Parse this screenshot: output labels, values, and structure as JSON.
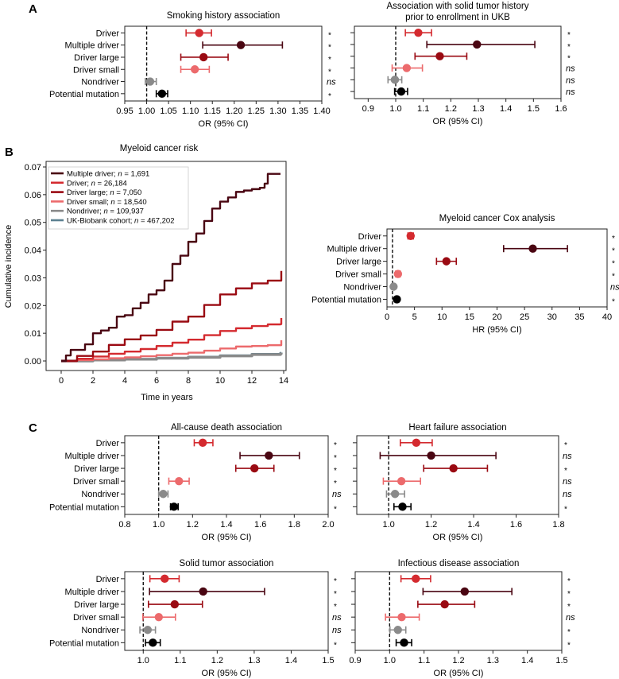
{
  "panel_labels": [
    "A",
    "B",
    "C"
  ],
  "colors": {
    "Driver": "#d42a2f",
    "Multiple driver": "#4a0612",
    "Driver large": "#9a0a12",
    "Driver small": "#ec6a6c",
    "Nondriver": "#8a8a8a",
    "Potential mutation": "#000000",
    "UK-Biobank cohort": "#5c8090"
  },
  "chart_data": [
    {
      "id": "smoking",
      "panel": "A",
      "type": "scatter",
      "subtype": "forest",
      "title": "Smoking history association",
      "xlabel": "OR (95% CI)",
      "xlim": [
        0.95,
        1.4
      ],
      "xticks": [
        0.95,
        1.0,
        1.05,
        1.1,
        1.15,
        1.2,
        1.25,
        1.3,
        1.35,
        1.4
      ],
      "xtick_labels": [
        "0.95",
        "1.00",
        "1.05",
        "1.10",
        "1.15",
        "1.20",
        "1.25",
        "1.30",
        "1.35",
        "1.40"
      ],
      "reference_line": 1.0,
      "categories": [
        "Driver",
        "Multiple driver",
        "Driver large",
        "Driver small",
        "Nondriver",
        "Potential mutation"
      ],
      "estimate": [
        1.12,
        1.215,
        1.13,
        1.11,
        1.008,
        1.035
      ],
      "ci_low": [
        1.09,
        1.128,
        1.078,
        1.078,
        0.997,
        1.022
      ],
      "ci_high": [
        1.148,
        1.31,
        1.186,
        1.143,
        1.022,
        1.048
      ],
      "significance": [
        "*",
        "*",
        "*",
        "*",
        "ns",
        "*"
      ]
    },
    {
      "id": "solid-tumor-history",
      "panel": "A",
      "type": "scatter",
      "subtype": "forest",
      "title": "Association with solid tumor history",
      "title_line2": "prior to enrollment in UKB",
      "xlabel": "OR (95% CI)",
      "xlim": [
        0.85,
        1.6
      ],
      "xticks": [
        0.9,
        1.0,
        1.1,
        1.2,
        1.3,
        1.4,
        1.5,
        1.6
      ],
      "xtick_labels": [
        "0.9",
        "1.0",
        "1.1",
        "1.2",
        "1.3",
        "1.4",
        "1.5",
        "1.6"
      ],
      "reference_line": 1.0,
      "categories": [
        "Driver",
        "Multiple driver",
        "Driver large",
        "Driver small",
        "Nondriver",
        "Potential mutation"
      ],
      "estimate": [
        1.082,
        1.295,
        1.16,
        1.04,
        0.997,
        1.02
      ],
      "ci_low": [
        1.035,
        1.113,
        1.07,
        0.987,
        0.972,
        0.996
      ],
      "ci_high": [
        1.13,
        1.505,
        1.258,
        1.097,
        1.022,
        1.043
      ],
      "significance": [
        "*",
        "*",
        "*",
        "ns",
        "ns",
        "ns"
      ]
    },
    {
      "id": "myeloid-risk",
      "panel": "B",
      "type": "line",
      "title": "Myeloid cancer risk",
      "xlabel": "Time in years",
      "ylabel": "Cumulative incidence",
      "xlim": [
        -1,
        14.5
      ],
      "ylim": [
        -0.003,
        0.0705
      ],
      "xticks": [
        0,
        2,
        4,
        6,
        8,
        10,
        12,
        14
      ],
      "xtick_labels": [
        "0",
        "2",
        "4",
        "6",
        "8",
        "10",
        "12",
        "14"
      ],
      "yticks": [
        0.0,
        0.01,
        0.02,
        0.03,
        0.04,
        0.05,
        0.06,
        0.07
      ],
      "ytick_labels": [
        "0.00",
        "0.01",
        "0.02",
        "0.03",
        "0.04",
        "0.05",
        "0.06",
        "0.07"
      ],
      "legend_position": "top-left",
      "legend": [
        {
          "name": "Multiple driver",
          "n": "1,691"
        },
        {
          "name": "Driver",
          "n": "26,184"
        },
        {
          "name": "Driver large",
          "n": "7,050"
        },
        {
          "name": "Driver small",
          "n": "18,540"
        },
        {
          "name": "Nondriver",
          "n": "109,937"
        },
        {
          "name": "UK-Biobank cohort",
          "n": "467,202"
        }
      ],
      "series": [
        {
          "name": "UK-Biobank cohort",
          "x": [
            0,
            2,
            4,
            6,
            8,
            10,
            12,
            13.8,
            13.85
          ],
          "y": [
            0,
            0.0003,
            0.0006,
            0.001,
            0.0014,
            0.0019,
            0.0024,
            0.0028,
            0.003
          ]
        },
        {
          "name": "Nondriver",
          "x": [
            0,
            2,
            4,
            6,
            8,
            10,
            12,
            13.8,
            13.85
          ],
          "y": [
            0,
            0.0003,
            0.0006,
            0.001,
            0.0013,
            0.0018,
            0.0023,
            0.0026,
            0.0029
          ]
        },
        {
          "name": "Driver small",
          "x": [
            0,
            1,
            2,
            3,
            4,
            5,
            6,
            7,
            8,
            9,
            10,
            11,
            12,
            13,
            13.8,
            13.85
          ],
          "y": [
            0,
            0.0003,
            0.0006,
            0.001,
            0.0013,
            0.0017,
            0.0021,
            0.0026,
            0.003,
            0.0037,
            0.0045,
            0.0052,
            0.0054,
            0.0057,
            0.0057,
            0.0075
          ]
        },
        {
          "name": "Driver",
          "x": [
            0,
            1,
            2,
            3,
            4,
            5,
            6,
            7,
            8,
            9,
            10,
            11,
            12,
            13,
            13.8,
            13.85
          ],
          "y": [
            0,
            0.0008,
            0.0016,
            0.0026,
            0.0034,
            0.0043,
            0.0054,
            0.0066,
            0.0077,
            0.0093,
            0.0108,
            0.0118,
            0.0126,
            0.0132,
            0.0133,
            0.0155
          ]
        },
        {
          "name": "Driver large",
          "x": [
            0,
            1,
            2,
            3,
            4,
            5,
            6,
            7,
            8,
            9,
            10,
            11,
            12,
            13,
            13.8,
            13.85
          ],
          "y": [
            0,
            0.0018,
            0.0034,
            0.0058,
            0.0078,
            0.0092,
            0.0112,
            0.0142,
            0.016,
            0.0202,
            0.024,
            0.0262,
            0.028,
            0.029,
            0.029,
            0.0325
          ]
        },
        {
          "name": "Multiple driver",
          "x": [
            0,
            0.3,
            0.6,
            1,
            1.5,
            2,
            2.5,
            3,
            3.5,
            4,
            4.5,
            5,
            5.5,
            6,
            6.5,
            7,
            7.5,
            8,
            8.5,
            9,
            9.5,
            10,
            10.5,
            11,
            11.5,
            12,
            12.5,
            12.8,
            13,
            13.8
          ],
          "y": [
            0,
            0.002,
            0.004,
            0.004,
            0.006,
            0.01,
            0.011,
            0.012,
            0.016,
            0.0165,
            0.019,
            0.021,
            0.024,
            0.0255,
            0.029,
            0.035,
            0.038,
            0.043,
            0.046,
            0.0505,
            0.055,
            0.0575,
            0.059,
            0.061,
            0.0615,
            0.062,
            0.0625,
            0.064,
            0.0675,
            0.0675
          ]
        }
      ]
    },
    {
      "id": "myeloid-cox",
      "panel": "B",
      "type": "scatter",
      "subtype": "forest",
      "title": "Myeloid cancer Cox analysis",
      "xlabel": "HR (95% CI)",
      "xlim": [
        0,
        40
      ],
      "xticks": [
        0,
        5,
        10,
        15,
        20,
        25,
        30,
        35,
        40
      ],
      "xtick_labels": [
        "0",
        "5",
        "10",
        "15",
        "20",
        "25",
        "30",
        "35",
        "40"
      ],
      "reference_line": 1.0,
      "categories": [
        "Driver",
        "Multiple driver",
        "Driver large",
        "Driver small",
        "Nondriver",
        "Potential mutation"
      ],
      "estimate": [
        4.3,
        26.5,
        10.8,
        2.0,
        1.2,
        1.8
      ],
      "ci_low": [
        3.8,
        21.2,
        9.0,
        1.6,
        0.9,
        1.5
      ],
      "ci_high": [
        4.8,
        32.8,
        12.6,
        2.4,
        1.4,
        2.1
      ],
      "significance": [
        "*",
        "*",
        "*",
        "*",
        "ns",
        "*"
      ]
    },
    {
      "id": "all-cause-death",
      "panel": "C",
      "type": "scatter",
      "subtype": "forest",
      "title": "All-cause death association",
      "xlabel": "OR (95% CI)",
      "xlim": [
        0.8,
        2.0
      ],
      "xticks": [
        0.8,
        1.0,
        1.2,
        1.4,
        1.6,
        1.8,
        2.0
      ],
      "xtick_labels": [
        "0.8",
        "1.0",
        "1.2",
        "1.4",
        "1.6",
        "1.8",
        "2.0"
      ],
      "reference_line": 1.0,
      "categories": [
        "Driver",
        "Multiple driver",
        "Driver large",
        "Driver small",
        "Nondriver",
        "Potential mutation"
      ],
      "estimate": [
        1.26,
        1.65,
        1.565,
        1.12,
        1.027,
        1.09
      ],
      "ci_low": [
        1.21,
        1.48,
        1.455,
        1.06,
        1.0,
        1.07
      ],
      "ci_high": [
        1.32,
        1.83,
        1.68,
        1.18,
        1.055,
        1.115
      ],
      "significance": [
        "*",
        "*",
        "*",
        "*",
        "ns",
        "*"
      ]
    },
    {
      "id": "heart-failure",
      "panel": "C",
      "type": "scatter",
      "subtype": "forest",
      "title": "Heart failure association",
      "xlabel": "OR (95% CI)",
      "xlim": [
        0.85,
        1.8
      ],
      "xticks": [
        1.0,
        1.2,
        1.4,
        1.6,
        1.8
      ],
      "xtick_labels": [
        "1.0",
        "1.2",
        "1.4",
        "1.6",
        "1.8"
      ],
      "reference_line": 1.0,
      "categories": [
        "Driver",
        "Multiple driver",
        "Driver large",
        "Driver small",
        "Nondriver",
        "Potential mutation"
      ],
      "estimate": [
        1.13,
        1.2,
        1.305,
        1.06,
        1.03,
        1.065
      ],
      "ci_low": [
        1.055,
        0.96,
        1.165,
        0.975,
        0.99,
        1.025
      ],
      "ci_high": [
        1.205,
        1.505,
        1.465,
        1.15,
        1.075,
        1.105
      ],
      "significance": [
        "*",
        "ns",
        "*",
        "ns",
        "ns",
        "*"
      ]
    },
    {
      "id": "solid-tumor",
      "panel": "C",
      "type": "scatter",
      "subtype": "forest",
      "title": "Solid tumor association",
      "xlabel": "OR (95% CI)",
      "xlim": [
        0.95,
        1.5
      ],
      "xticks": [
        1.0,
        1.1,
        1.2,
        1.3,
        1.4,
        1.5
      ],
      "xtick_labels": [
        "1.0",
        "1.1",
        "1.2",
        "1.3",
        "1.4",
        "1.5"
      ],
      "reference_line": 1.0,
      "categories": [
        "Driver",
        "Multiple driver",
        "Driver large",
        "Driver small",
        "Nondriver",
        "Potential mutation"
      ],
      "estimate": [
        1.058,
        1.162,
        1.085,
        1.042,
        1.012,
        1.026
      ],
      "ci_low": [
        1.018,
        1.017,
        1.014,
        0.999,
        0.991,
        1.006
      ],
      "ci_high": [
        1.097,
        1.328,
        1.16,
        1.087,
        1.033,
        1.046
      ],
      "significance": [
        "*",
        "*",
        "*",
        "ns",
        "ns",
        "*"
      ]
    },
    {
      "id": "infectious-disease",
      "panel": "C",
      "type": "scatter",
      "subtype": "forest",
      "title": "Infectious disease association",
      "xlabel": "OR (95% CI)",
      "xlim": [
        0.9,
        1.5
      ],
      "xticks": [
        0.9,
        1.0,
        1.1,
        1.2,
        1.3,
        1.4,
        1.5
      ],
      "xtick_labels": [
        "0.9",
        "1.0",
        "1.1",
        "1.2",
        "1.3",
        "1.4",
        "1.5"
      ],
      "reference_line": 1.0,
      "categories": [
        "Driver",
        "Multiple driver",
        "Driver large",
        "Driver small",
        "Nondriver",
        "Potential mutation"
      ],
      "estimate": [
        1.076,
        1.218,
        1.16,
        1.035,
        1.024,
        1.042
      ],
      "ci_low": [
        1.033,
        1.097,
        1.082,
        0.988,
        1.001,
        1.019
      ],
      "ci_high": [
        1.119,
        1.355,
        1.247,
        1.086,
        1.047,
        1.064
      ],
      "significance": [
        "*",
        "*",
        "*",
        "ns",
        "*",
        "*"
      ]
    }
  ]
}
